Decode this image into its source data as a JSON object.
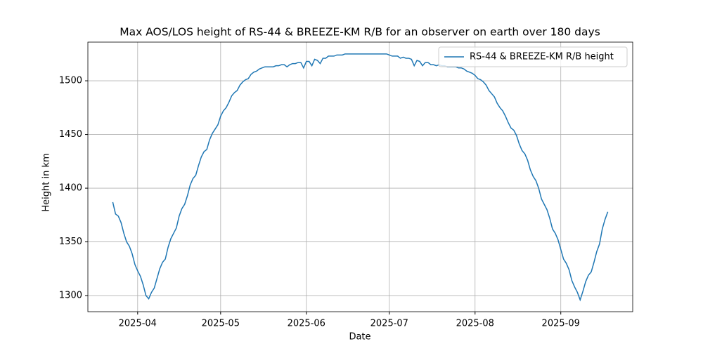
{
  "chart_data": {
    "type": "line",
    "title": "Max AOS/LOS height of RS-44 & BREEZE-KM R/B for an observer on earth over 180 days",
    "x_label": "Date",
    "y_label": "Height in km",
    "x": [
      20170,
      20171,
      20172,
      20173,
      20174,
      20175,
      20176,
      20177,
      20178,
      20179,
      20180,
      20181,
      20182,
      20183,
      20184,
      20185,
      20186,
      20187,
      20188,
      20189,
      20190,
      20191,
      20192,
      20193,
      20194,
      20195,
      20196,
      20197,
      20198,
      20199,
      20200,
      20201,
      20202,
      20203,
      20204,
      20205,
      20206,
      20207,
      20208,
      20209,
      20210,
      20211,
      20212,
      20213,
      20214,
      20215,
      20216,
      20217,
      20218,
      20219,
      20220,
      20221,
      20222,
      20223,
      20224,
      20225,
      20226,
      20227,
      20228,
      20229,
      20230,
      20231,
      20232,
      20233,
      20234,
      20235,
      20236,
      20237,
      20238,
      20239,
      20240,
      20241,
      20242,
      20243,
      20244,
      20245,
      20246,
      20247,
      20248,
      20249,
      20250,
      20251,
      20252,
      20253,
      20254,
      20255,
      20256,
      20257,
      20258,
      20259,
      20260,
      20261,
      20262,
      20263,
      20264,
      20265,
      20266,
      20267,
      20268,
      20269,
      20270,
      20271,
      20272,
      20273,
      20274,
      20275,
      20276,
      20277,
      20278,
      20279,
      20280,
      20281,
      20282,
      20283,
      20284,
      20285,
      20286,
      20287,
      20288,
      20289,
      20290,
      20291,
      20292,
      20293,
      20294,
      20295,
      20296,
      20297,
      20298,
      20299,
      20300,
      20301,
      20302,
      20303,
      20304,
      20305,
      20306,
      20307,
      20308,
      20309,
      20310,
      20311,
      20312,
      20313,
      20314,
      20315,
      20316,
      20317,
      20318,
      20319,
      20320,
      20321,
      20322,
      20323,
      20324,
      20325,
      20326,
      20327,
      20328,
      20329,
      20330,
      20331,
      20332,
      20333,
      20334,
      20335,
      20336,
      20337,
      20338,
      20339,
      20340,
      20341,
      20342,
      20343,
      20344,
      20345,
      20346,
      20347,
      20348,
      20349
    ],
    "series": [
      {
        "name": "RS-44 & BREEZE-KM R/B height",
        "color": "#1f77b4",
        "values": [
          1387,
          1376,
          1374,
          1368,
          1358,
          1350,
          1346,
          1339,
          1329,
          1323,
          1318,
          1310,
          1300,
          1297,
          1303,
          1307,
          1316,
          1325,
          1331,
          1334,
          1345,
          1353,
          1358,
          1363,
          1374,
          1381,
          1385,
          1393,
          1403,
          1409,
          1412,
          1421,
          1429,
          1434,
          1436,
          1445,
          1451,
          1455,
          1459,
          1467,
          1472,
          1475,
          1480,
          1486,
          1489,
          1491,
          1496,
          1499,
          1501,
          1502,
          1506,
          1508,
          1509,
          1511,
          1512,
          1513,
          1513,
          1513,
          1513,
          1514,
          1514,
          1515,
          1515,
          1513,
          1515,
          1516,
          1516,
          1517,
          1517,
          1512,
          1518,
          1518,
          1514,
          1520,
          1519,
          1516,
          1521,
          1521,
          1523,
          1523,
          1523,
          1524,
          1524,
          1524,
          1525,
          1525,
          1525,
          1525,
          1525,
          1525,
          1525,
          1525,
          1525,
          1525,
          1525,
          1525,
          1525,
          1525,
          1525,
          1525,
          1524,
          1523,
          1523,
          1523,
          1521,
          1522,
          1521,
          1521,
          1520,
          1514,
          1519,
          1518,
          1514,
          1517,
          1517,
          1515,
          1515,
          1514,
          1515,
          1514,
          1514,
          1513,
          1513,
          1513,
          1513,
          1512,
          1512,
          1511,
          1509,
          1508,
          1507,
          1505,
          1502,
          1501,
          1499,
          1496,
          1491,
          1488,
          1485,
          1479,
          1475,
          1472,
          1467,
          1461,
          1456,
          1454,
          1449,
          1441,
          1435,
          1432,
          1426,
          1417,
          1411,
          1407,
          1400,
          1390,
          1385,
          1380,
          1372,
          1362,
          1358,
          1352,
          1343,
          1334,
          1330,
          1324,
          1314,
          1308,
          1303,
          1296,
          1304,
          1313,
          1319,
          1322,
          1331,
          1341,
          1348,
          1362,
          1371,
          1378
        ]
      }
    ],
    "xlim": [
      20161,
      20358
    ],
    "xticks": [
      {
        "value": 20179,
        "label": "2025-04"
      },
      {
        "value": 20209,
        "label": "2025-05"
      },
      {
        "value": 20240,
        "label": "2025-06"
      },
      {
        "value": 20270,
        "label": "2025-07"
      },
      {
        "value": 20301,
        "label": "2025-08"
      },
      {
        "value": 20332,
        "label": "2025-09"
      }
    ],
    "ylim": [
      1285,
      1536
    ],
    "yticks": [
      1300,
      1350,
      1400,
      1450,
      1500
    ],
    "grid": true,
    "legend": "upper-right"
  }
}
